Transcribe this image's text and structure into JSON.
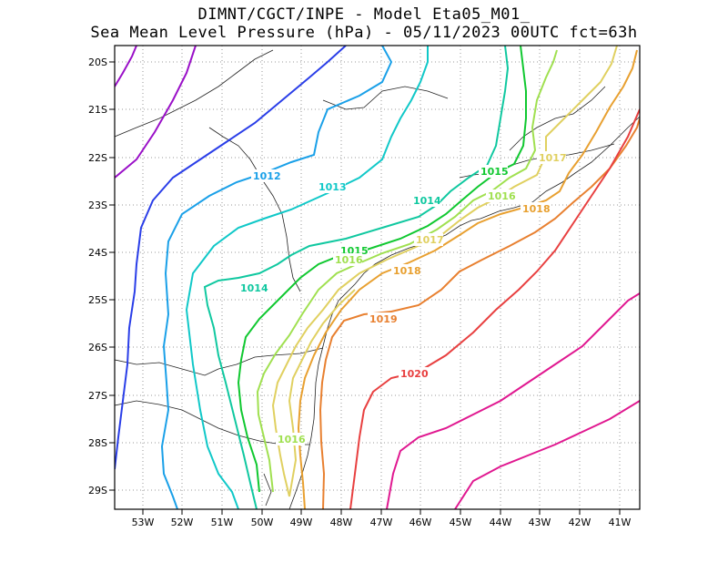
{
  "title_line1": "DIMNT/CGCT/INPE -  Model Eta05_M01_",
  "title_line2": "Sea Mean Level Pressure (hPa) - 05/11/2023 00UTC fct=63h",
  "axes": {
    "lat_labels": [
      "20S",
      "21S",
      "22S",
      "23S",
      "24S",
      "25S",
      "26S",
      "27S",
      "28S",
      "29S"
    ],
    "lon_labels": [
      "53W",
      "52W",
      "51W",
      "50W",
      "49W",
      "48W",
      "47W",
      "46W",
      "45W",
      "44W",
      "43W",
      "42W",
      "41W"
    ]
  },
  "chart_data": {
    "type": "contour-map",
    "variable": "Sea Mean Level Pressure",
    "units": "hPa",
    "lon_range": [
      -53.6,
      -40.4
    ],
    "lat_range": [
      -29.4,
      -19.7
    ],
    "contours": [
      {
        "level": 1010,
        "color": "#9a10c8",
        "labeled": false
      },
      {
        "level": 1011,
        "color": "#2a3ee8",
        "labeled": false
      },
      {
        "level": 1012,
        "color": "#1aa0e8",
        "labeled": true,
        "label": "1012"
      },
      {
        "level": 1013,
        "color": "#10c8c8",
        "labeled": true,
        "label": "1013"
      },
      {
        "level": 1014,
        "color": "#10c8a0",
        "labeled": true,
        "label": "1014"
      },
      {
        "level": 1015,
        "color": "#10c830",
        "labeled": true,
        "label": "1015"
      },
      {
        "level": 1016,
        "color": "#a0e050",
        "labeled": true,
        "label": "1016"
      },
      {
        "level": 1017,
        "color": "#e0d060",
        "labeled": true,
        "label": "1017"
      },
      {
        "level": 1018,
        "color": "#e8a030",
        "labeled": true,
        "label": "1018"
      },
      {
        "level": 1019,
        "color": "#e88030",
        "labeled": true,
        "label": "1019"
      },
      {
        "level": 1020,
        "color": "#e84040",
        "labeled": true,
        "label": "1020"
      },
      {
        "level": 1021,
        "color": "#e01890",
        "labeled": false
      },
      {
        "level": 1022,
        "color": "#e01890",
        "labeled": false
      }
    ],
    "labels": [
      {
        "text": "1012",
        "color": "#1aa0e8"
      },
      {
        "text": "1013",
        "color": "#10c8c8"
      },
      {
        "text": "1014",
        "color": "#10c8a0"
      },
      {
        "text": "1014",
        "color": "#10c8a0"
      },
      {
        "text": "1015",
        "color": "#10c830"
      },
      {
        "text": "1015",
        "color": "#10c830"
      },
      {
        "text": "1016",
        "color": "#a0e050"
      },
      {
        "text": "1016",
        "color": "#a0e050"
      },
      {
        "text": "1016",
        "color": "#a0e050"
      },
      {
        "text": "1017",
        "color": "#e0d060"
      },
      {
        "text": "1017",
        "color": "#e0d060"
      },
      {
        "text": "1018",
        "color": "#e8a030"
      },
      {
        "text": "1018",
        "color": "#e8a030"
      },
      {
        "text": "1019",
        "color": "#e88030"
      },
      {
        "text": "1020",
        "color": "#e84040"
      }
    ]
  }
}
